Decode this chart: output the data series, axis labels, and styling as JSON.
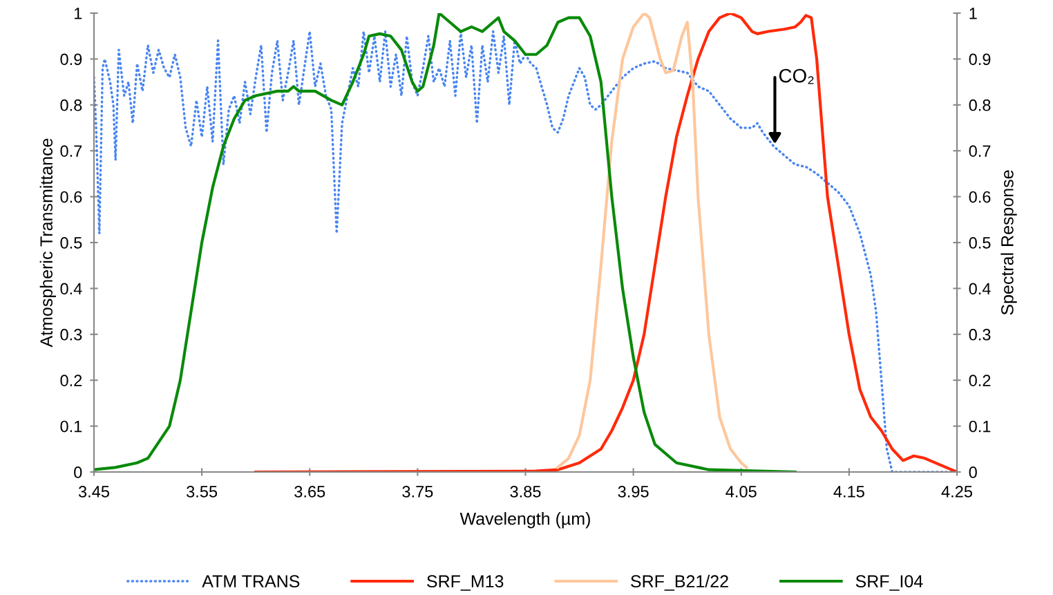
{
  "chart_data": {
    "type": "line",
    "xlabel": "Wavelength (µm)",
    "ylabel": "Atmospheric Transmittance",
    "y2label": "Spectral Response",
    "xlim": [
      3.45,
      4.25
    ],
    "xticks": [
      3.45,
      3.55,
      3.65,
      3.75,
      3.85,
      3.95,
      4.05,
      4.15,
      4.25
    ],
    "ylim": [
      0,
      1
    ],
    "yticks": [
      0,
      0.1,
      0.2,
      0.3,
      0.4,
      0.5,
      0.6,
      0.7,
      0.8,
      0.9,
      1
    ],
    "y2lim": [
      0,
      1
    ],
    "y2ticks": [
      0,
      0.1,
      0.2,
      0.3,
      0.4,
      0.5,
      0.6,
      0.7,
      0.8,
      0.9,
      1
    ],
    "grid": false,
    "legend": "bottom",
    "annotations": [
      "CO₂"
    ],
    "series": [
      {
        "name": "ATM TRANS",
        "color": "#4a86f0",
        "line_style": "dotted",
        "x": [
          3.45,
          3.452,
          3.455,
          3.458,
          3.46,
          3.465,
          3.468,
          3.47,
          3.473,
          3.478,
          3.482,
          3.486,
          3.49,
          3.495,
          3.5,
          3.505,
          3.51,
          3.515,
          3.52,
          3.525,
          3.53,
          3.535,
          3.54,
          3.545,
          3.55,
          3.555,
          3.56,
          3.565,
          3.57,
          3.575,
          3.58,
          3.585,
          3.59,
          3.595,
          3.6,
          3.605,
          3.61,
          3.615,
          3.62,
          3.625,
          3.63,
          3.635,
          3.64,
          3.645,
          3.65,
          3.655,
          3.66,
          3.665,
          3.67,
          3.675,
          3.68,
          3.685,
          3.69,
          3.695,
          3.7,
          3.705,
          3.71,
          3.715,
          3.72,
          3.725,
          3.73,
          3.735,
          3.74,
          3.745,
          3.75,
          3.755,
          3.76,
          3.765,
          3.77,
          3.775,
          3.78,
          3.785,
          3.79,
          3.795,
          3.8,
          3.805,
          3.81,
          3.815,
          3.82,
          3.825,
          3.83,
          3.835,
          3.84,
          3.845,
          3.85,
          3.855,
          3.86,
          3.87,
          3.875,
          3.88,
          3.885,
          3.89,
          3.895,
          3.9,
          3.905,
          3.91,
          3.915,
          3.92,
          3.93,
          3.94,
          3.95,
          3.96,
          3.97,
          3.98,
          3.99,
          4.0,
          4.01,
          4.02,
          4.03,
          4.04,
          4.05,
          4.06,
          4.065,
          4.07,
          4.08,
          4.09,
          4.1,
          4.11,
          4.12,
          4.13,
          4.14,
          4.15,
          4.16,
          4.17,
          4.175,
          4.18,
          4.185,
          4.19,
          4.25
        ],
        "values": [
          0.86,
          0.75,
          0.52,
          0.88,
          0.9,
          0.85,
          0.8,
          0.68,
          0.92,
          0.82,
          0.85,
          0.76,
          0.89,
          0.83,
          0.93,
          0.87,
          0.92,
          0.88,
          0.86,
          0.91,
          0.86,
          0.75,
          0.71,
          0.81,
          0.73,
          0.84,
          0.72,
          0.94,
          0.67,
          0.79,
          0.82,
          0.76,
          0.85,
          0.78,
          0.86,
          0.93,
          0.74,
          0.87,
          0.94,
          0.81,
          0.87,
          0.94,
          0.8,
          0.88,
          0.96,
          0.84,
          0.89,
          0.82,
          0.79,
          0.52,
          0.76,
          0.82,
          0.88,
          0.84,
          0.96,
          0.87,
          0.95,
          0.85,
          0.96,
          0.84,
          0.91,
          0.82,
          0.95,
          0.85,
          0.82,
          0.88,
          0.95,
          0.85,
          0.88,
          0.84,
          0.94,
          0.82,
          0.96,
          0.86,
          0.93,
          0.76,
          0.93,
          0.85,
          0.96,
          0.87,
          0.95,
          0.8,
          0.94,
          0.89,
          0.91,
          0.89,
          0.88,
          0.8,
          0.75,
          0.74,
          0.77,
          0.82,
          0.85,
          0.88,
          0.86,
          0.8,
          0.79,
          0.8,
          0.83,
          0.86,
          0.88,
          0.89,
          0.895,
          0.88,
          0.875,
          0.87,
          0.84,
          0.83,
          0.8,
          0.77,
          0.75,
          0.75,
          0.76,
          0.74,
          0.71,
          0.69,
          0.67,
          0.665,
          0.65,
          0.63,
          0.61,
          0.58,
          0.52,
          0.43,
          0.35,
          0.2,
          0.05,
          0,
          0
        ]
      },
      {
        "name": "SRF_M13",
        "color": "#ff2a0a",
        "axis": "y2",
        "x": [
          3.6,
          3.86,
          3.88,
          3.9,
          3.92,
          3.93,
          3.94,
          3.95,
          3.96,
          3.97,
          3.98,
          3.99,
          4.0,
          4.01,
          4.02,
          4.03,
          4.04,
          4.05,
          4.06,
          4.065,
          4.075,
          4.09,
          4.1,
          4.105,
          4.11,
          4.115,
          4.12,
          4.125,
          4.13,
          4.14,
          4.15,
          4.16,
          4.17,
          4.18,
          4.19,
          4.2,
          4.21,
          4.22,
          4.24,
          4.25
        ],
        "values": [
          0,
          0.002,
          0.005,
          0.02,
          0.05,
          0.09,
          0.14,
          0.2,
          0.3,
          0.45,
          0.6,
          0.73,
          0.82,
          0.9,
          0.96,
          0.99,
          1,
          0.99,
          0.96,
          0.955,
          0.96,
          0.965,
          0.97,
          0.98,
          0.995,
          0.99,
          0.9,
          0.75,
          0.6,
          0.45,
          0.3,
          0.18,
          0.12,
          0.09,
          0.05,
          0.025,
          0.035,
          0.03,
          0.01,
          0
        ]
      },
      {
        "name": "SRF_B21/22",
        "color": "#fdc79c",
        "axis": "y2",
        "x": [
          3.88,
          3.89,
          3.9,
          3.91,
          3.92,
          3.93,
          3.94,
          3.95,
          3.96,
          3.965,
          3.975,
          3.98,
          3.987,
          3.995,
          4.0,
          4.005,
          4.01,
          4.02,
          4.03,
          4.04,
          4.05,
          4.055
        ],
        "values": [
          0.01,
          0.03,
          0.08,
          0.2,
          0.45,
          0.72,
          0.9,
          0.97,
          1,
          0.99,
          0.9,
          0.87,
          0.875,
          0.95,
          0.98,
          0.85,
          0.6,
          0.3,
          0.12,
          0.05,
          0.02,
          0.01
        ]
      },
      {
        "name": "SRF_I04",
        "color": "#0a8a0a",
        "axis": "y2",
        "x": [
          3.45,
          3.47,
          3.49,
          3.5,
          3.52,
          3.53,
          3.54,
          3.55,
          3.56,
          3.57,
          3.58,
          3.59,
          3.6,
          3.62,
          3.63,
          3.635,
          3.64,
          3.655,
          3.67,
          3.68,
          3.69,
          3.7,
          3.705,
          3.715,
          3.725,
          3.735,
          3.745,
          3.75,
          3.755,
          3.765,
          3.77,
          3.78,
          3.79,
          3.8,
          3.81,
          3.82,
          3.825,
          3.83,
          3.84,
          3.85,
          3.86,
          3.87,
          3.88,
          3.89,
          3.895,
          3.9,
          3.91,
          3.92,
          3.93,
          3.94,
          3.95,
          3.96,
          3.97,
          3.99,
          4.02,
          4.1
        ],
        "values": [
          0.005,
          0.01,
          0.02,
          0.03,
          0.1,
          0.2,
          0.35,
          0.5,
          0.62,
          0.71,
          0.77,
          0.81,
          0.82,
          0.83,
          0.83,
          0.84,
          0.83,
          0.83,
          0.81,
          0.8,
          0.85,
          0.91,
          0.95,
          0.955,
          0.95,
          0.92,
          0.85,
          0.83,
          0.84,
          0.93,
          1,
          0.98,
          0.96,
          0.97,
          0.96,
          0.98,
          0.99,
          0.96,
          0.94,
          0.91,
          0.91,
          0.93,
          0.98,
          0.99,
          0.99,
          0.99,
          0.95,
          0.85,
          0.6,
          0.4,
          0.25,
          0.13,
          0.06,
          0.02,
          0.005,
          0
        ]
      }
    ]
  }
}
